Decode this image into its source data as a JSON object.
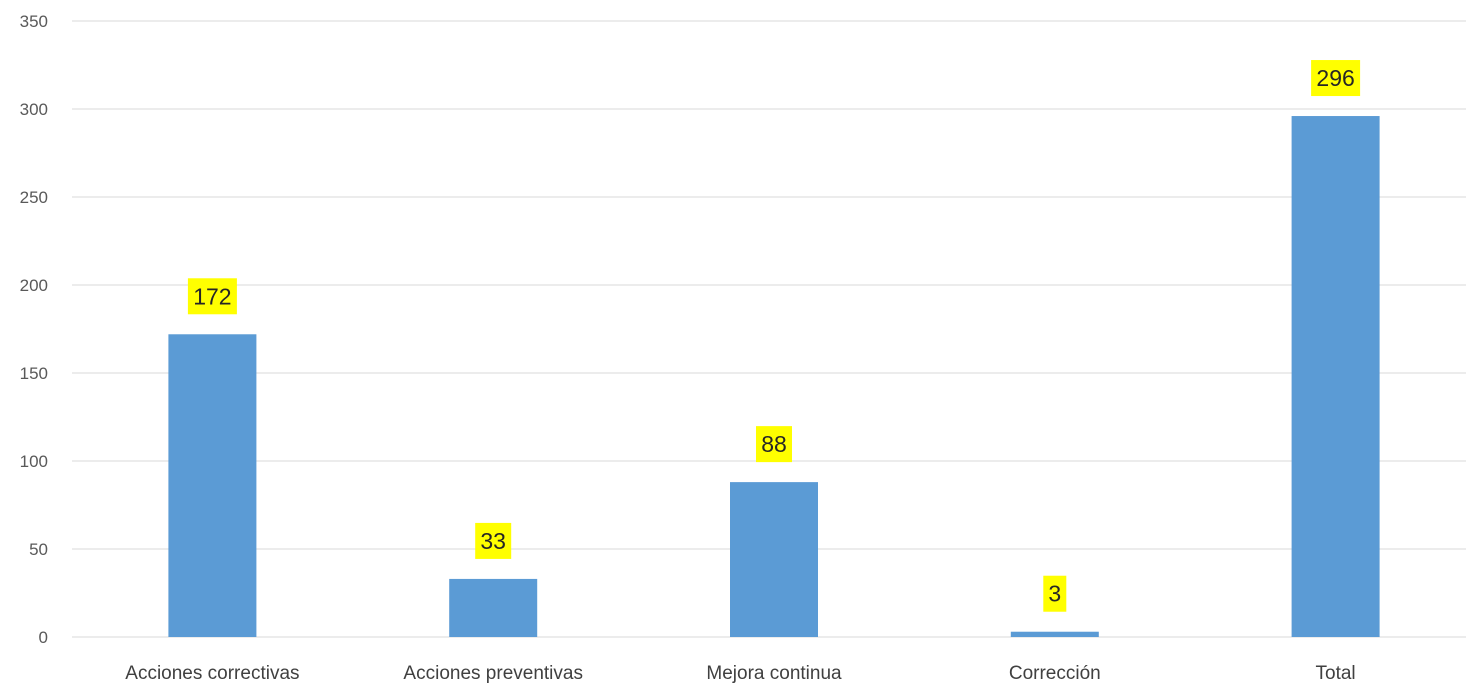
{
  "chart_data": {
    "type": "bar",
    "categories": [
      "Acciones correctivas",
      "Acciones preventivas",
      "Mejora continua",
      "Corrección",
      "Total"
    ],
    "values": [
      172,
      33,
      88,
      3,
      296
    ],
    "ylim": [
      0,
      350
    ],
    "yticks": [
      0,
      50,
      100,
      150,
      200,
      250,
      300,
      350
    ],
    "grid": true,
    "bar_color": "#5b9bd5",
    "label_background": "#ffff00",
    "title": "",
    "xlabel": "",
    "ylabel": ""
  }
}
